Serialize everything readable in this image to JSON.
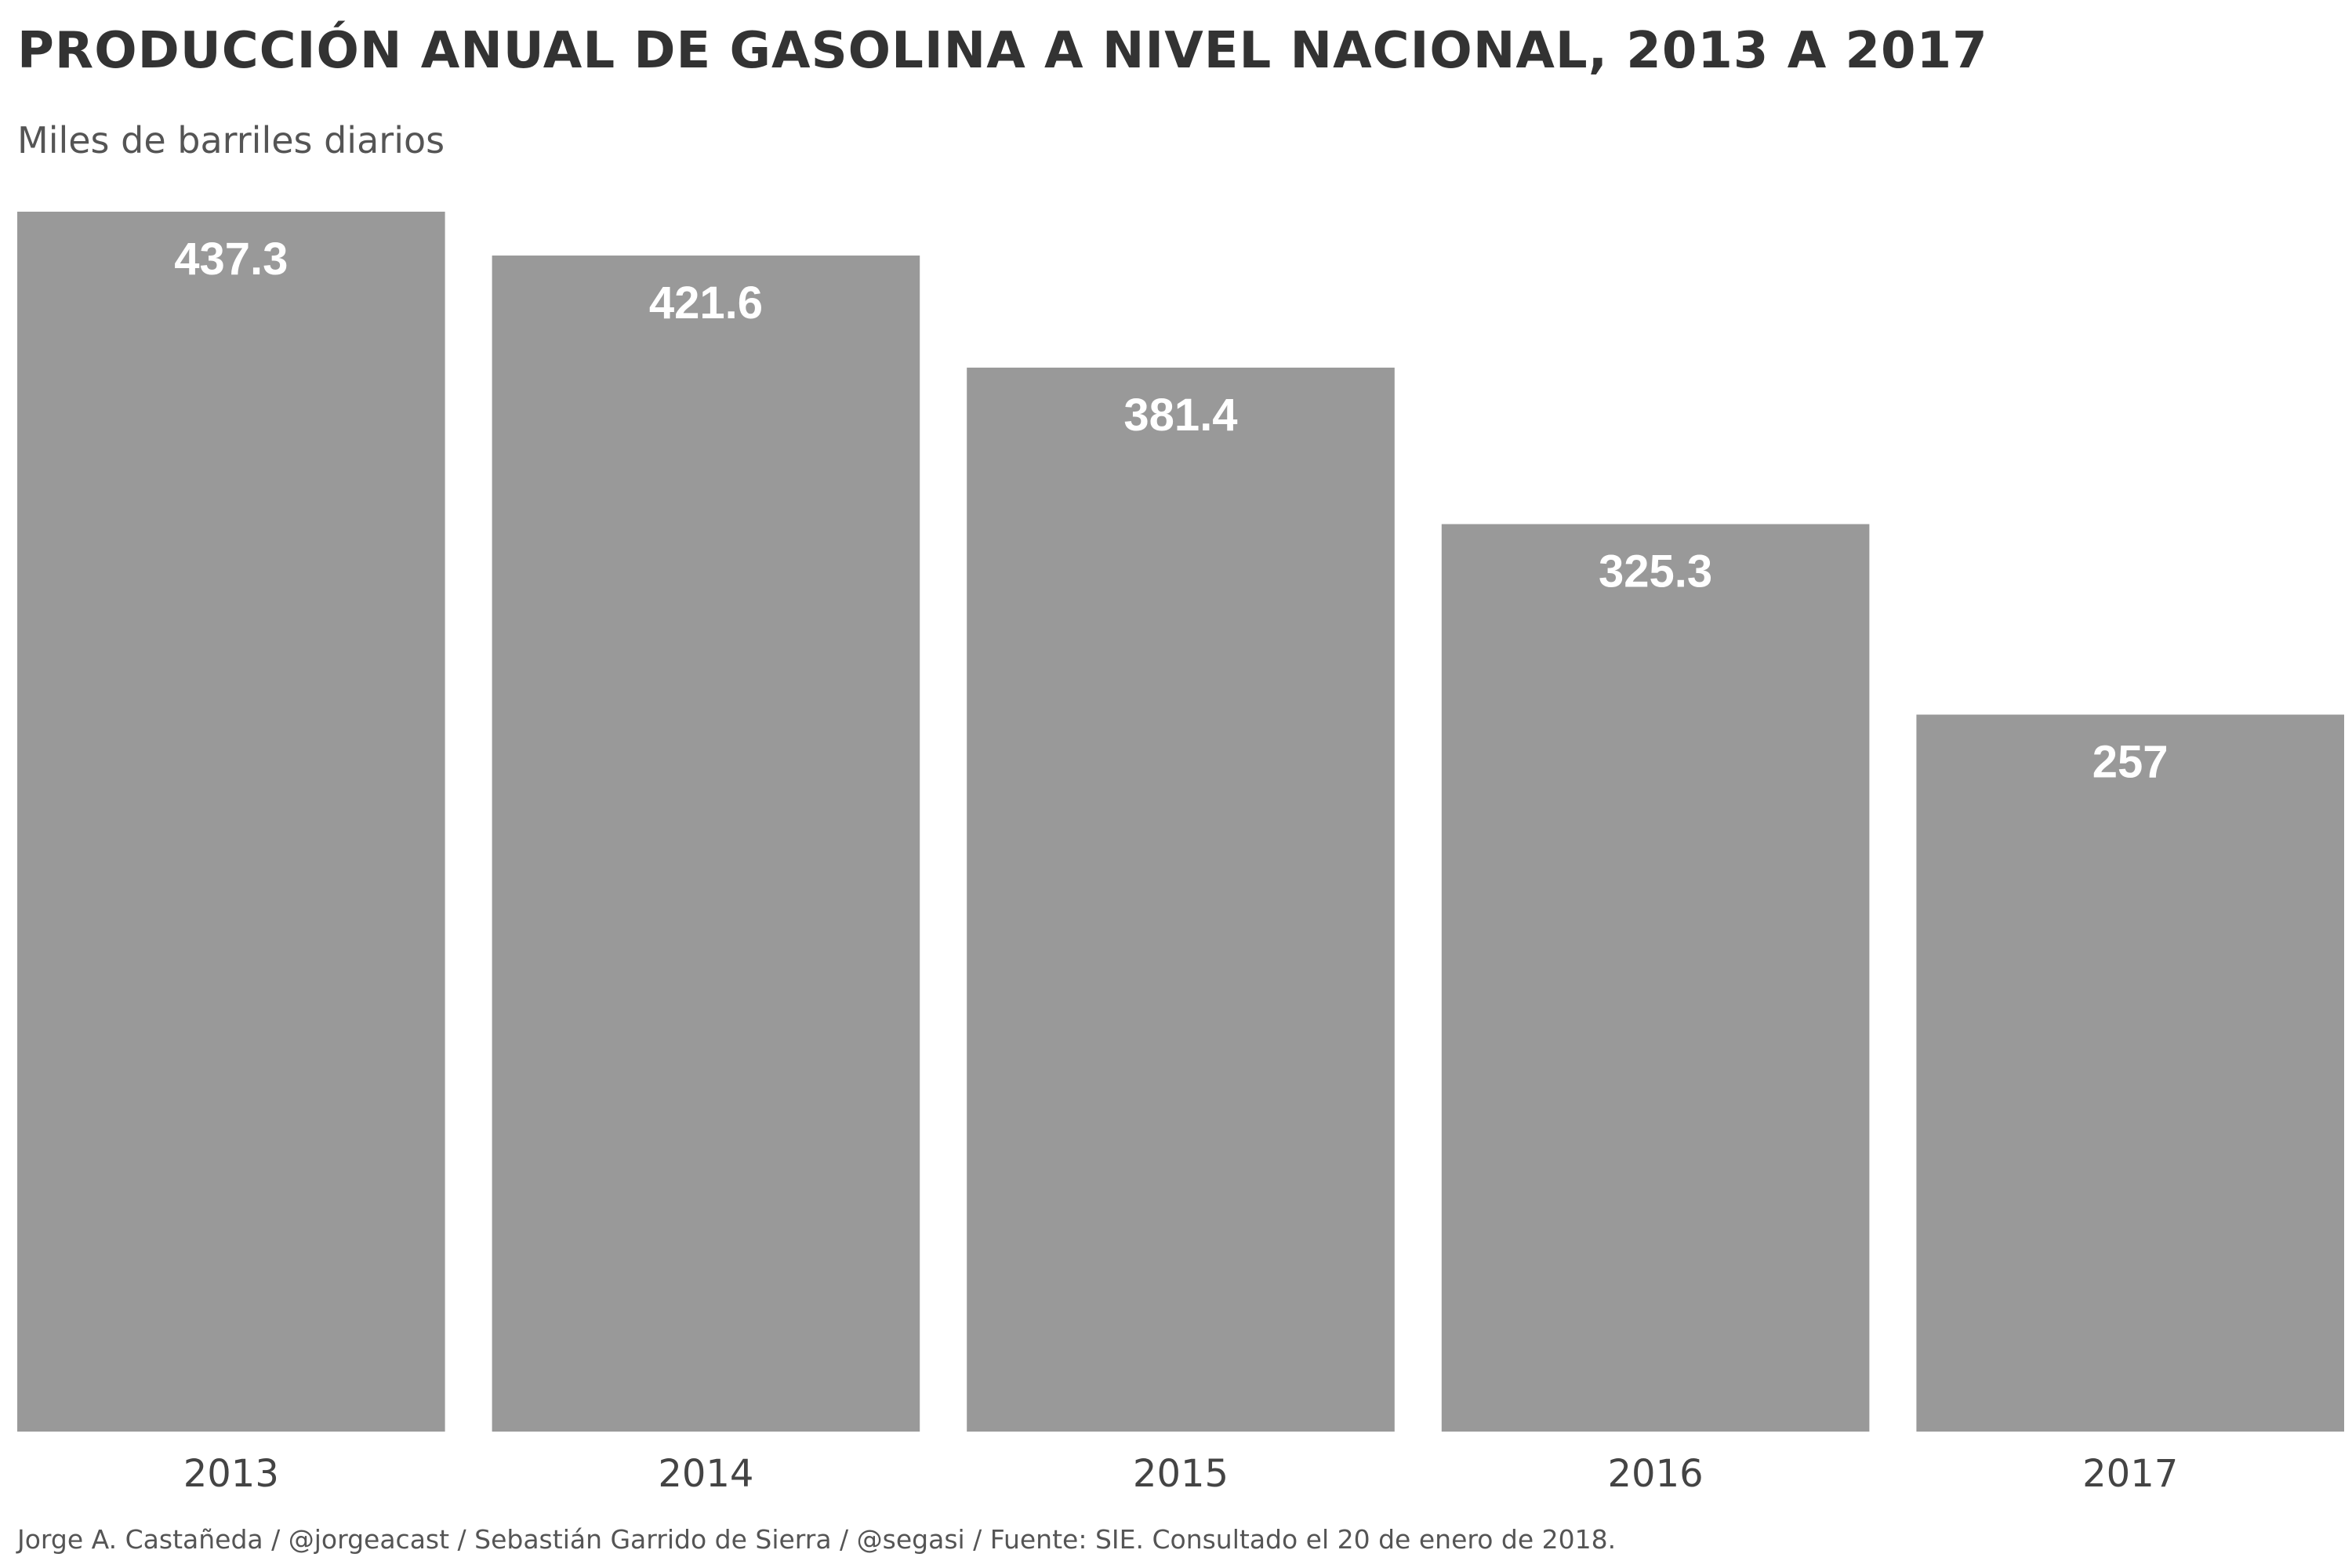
{
  "chart_data": {
    "type": "bar",
    "title": "PRODUCCIÓN ANUAL DE GASOLINA A NIVEL NACIONAL, 2013 A 2017",
    "subtitle": "Miles de barriles diarios",
    "categories": [
      "2013",
      "2014",
      "2015",
      "2016",
      "2017"
    ],
    "values": [
      437.3,
      421.6,
      381.4,
      325.3,
      257
    ],
    "data_labels": [
      "437.3",
      "421.6",
      "381.4",
      "325.3",
      "257"
    ],
    "xlabel": "",
    "ylabel": "",
    "ylim": [
      0,
      437.3
    ],
    "grid": false,
    "legend": "none",
    "bar_color": "#999999",
    "label_color": "#ffffff"
  },
  "footer": {
    "credits": "Jorge A. Castañeda / @jorgeacast / Sebastián Garrido de Sierra / @segasi / Fuente: SIE. Consultado el 20 de enero de 2018."
  }
}
